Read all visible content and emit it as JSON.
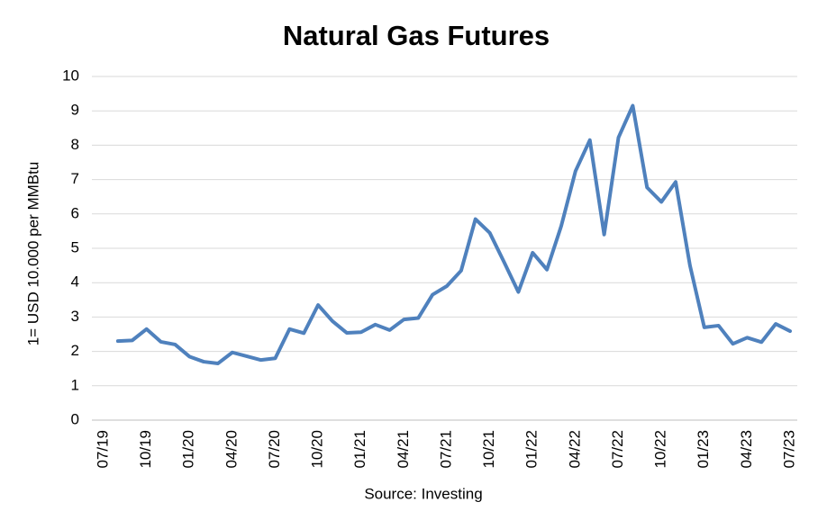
{
  "chart_data": {
    "type": "line",
    "title": "Natural Gas Futures",
    "y_label": "1= USD 10.000 per MMBtu",
    "x_label": "Source: Investing",
    "categories": [
      "07/19",
      null,
      null,
      "10/19",
      null,
      null,
      "01/20",
      null,
      null,
      "04/20",
      null,
      null,
      "07/20",
      null,
      null,
      "10/20",
      null,
      null,
      "01/21",
      null,
      null,
      "04/21",
      null,
      null,
      "07/21",
      null,
      null,
      "10/21",
      null,
      null,
      "01/22",
      null,
      null,
      "04/22",
      null,
      null,
      "07/22",
      null,
      null,
      "10/22",
      null,
      null,
      "01/23",
      null,
      null,
      "04/23",
      null,
      null,
      "07/23"
    ],
    "series": [
      {
        "name": "Natural Gas Futures",
        "color": "#4f81bd",
        "values": [
          null,
          2.3,
          2.32,
          2.65,
          2.28,
          2.2,
          1.85,
          1.7,
          1.65,
          1.97,
          1.86,
          1.75,
          1.8,
          2.65,
          2.53,
          3.35,
          2.88,
          2.54,
          2.56,
          2.78,
          2.62,
          2.93,
          2.97,
          3.65,
          3.9,
          4.35,
          5.85,
          5.45,
          4.6,
          3.73,
          4.87,
          4.38,
          5.65,
          7.25,
          8.15,
          5.4,
          8.22,
          9.15,
          6.77,
          6.35,
          6.93,
          4.5,
          2.7,
          2.75,
          2.22,
          2.4,
          2.27,
          2.8,
          2.59
        ]
      }
    ],
    "ylim": [
      0,
      10
    ],
    "yticks": [
      0,
      1,
      2,
      3,
      4,
      5,
      6,
      7,
      8,
      9,
      10
    ],
    "grid": true
  }
}
